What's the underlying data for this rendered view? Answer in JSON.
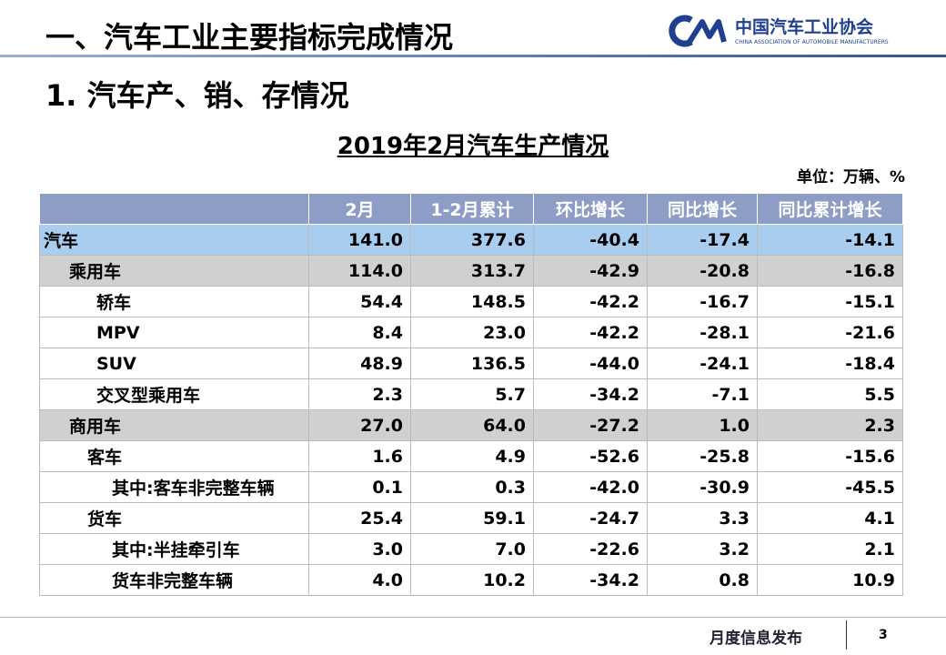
{
  "header": {
    "title": "一、汽车工业主要指标完成情况",
    "logo_cn": "中国汽车工业协会",
    "logo_en": "CHINA ASSOCIATION OF AUTOMOBILE MANUFACTURERS"
  },
  "subtitle": "1. 汽车产、销、存情况",
  "table": {
    "title": "2019年2月汽车生产情况",
    "unit": "单位：万辆、%",
    "columns": [
      "2月",
      "1-2月累计",
      "环比增长",
      "同比增长",
      "同比累计增长"
    ],
    "rows": [
      [
        "汽车",
        "141.0",
        "377.6",
        "-40.4",
        "-17.4",
        "-14.1"
      ],
      [
        "乘用车",
        "114.0",
        "313.7",
        "-42.9",
        "-20.8",
        "-16.8"
      ],
      [
        "轿车",
        "54.4",
        "148.5",
        "-42.2",
        "-16.7",
        "-15.1"
      ],
      [
        "MPV",
        "8.4",
        "23.0",
        "-42.2",
        "-28.1",
        "-21.6"
      ],
      [
        "SUV",
        "48.9",
        "136.5",
        "-44.0",
        "-24.1",
        "-18.4"
      ],
      [
        "交叉型乘用车",
        "2.3",
        "5.7",
        "-34.2",
        "-7.1",
        "5.5"
      ],
      [
        "商用车",
        "27.0",
        "64.0",
        "-27.2",
        "1.0",
        "2.3"
      ],
      [
        "客车",
        "1.6",
        "4.9",
        "-52.6",
        "-25.8",
        "-15.6"
      ],
      [
        "其中:客车非完整车辆",
        "0.1",
        "0.3",
        "-42.0",
        "-30.9",
        "-45.5"
      ],
      [
        "货车",
        "25.4",
        "59.1",
        "-24.7",
        "3.3",
        "4.1"
      ],
      [
        "其中:半挂牵引车",
        "3.0",
        "7.0",
        "-22.6",
        "3.2",
        "2.1"
      ],
      [
        "货车非完整车辆",
        "4.0",
        "10.2",
        "-34.2",
        "0.8",
        "10.9"
      ]
    ]
  },
  "footer": {
    "text": "月度信息发布",
    "page": "3"
  }
}
